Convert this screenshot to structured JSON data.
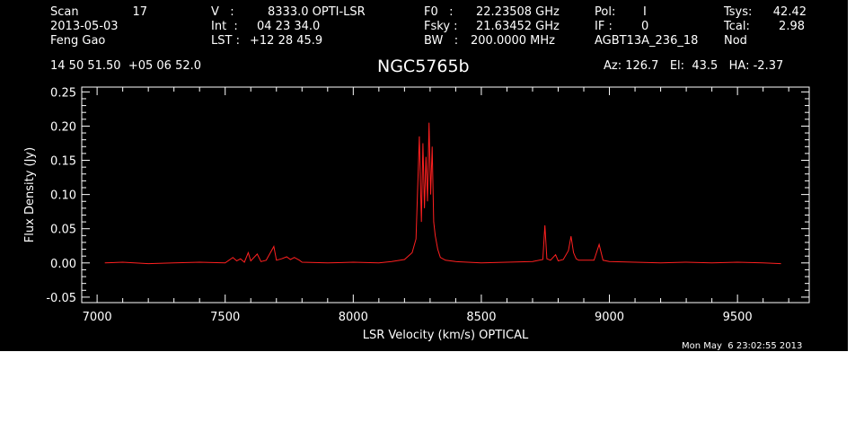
{
  "header": {
    "scan_label": "Scan",
    "scan_value": "17",
    "date": "2013-05-03",
    "observer": "Feng Gao",
    "coords": "14 50 51.50  +05 06 52.0",
    "v_label": "V   :",
    "v_value": "8333.0 OPTI-LSR",
    "int_label": "Int  :",
    "int_value": "04 23 34.0",
    "lst_label": "LST :",
    "lst_value": "+12 28 45.9",
    "f0_label": "F0   :",
    "f0_value": "22.23508 GHz",
    "fsky_label": "Fsky :",
    "fsky_value": "21.63452 GHz",
    "bw_label": "BW   :",
    "bw_value": "200.0000 MHz",
    "pol_label": "Pol:",
    "pol_value": "I",
    "if_label": "IF :",
    "if_value": "0",
    "project": "AGBT13A_236_18",
    "tsys_label": "Tsys:",
    "tsys_value": "42.42",
    "tcal_label": "Tcal:",
    "tcal_value": "2.98",
    "mode": "Nod",
    "az_el_ha": "Az: 126.7   El:  43.5   HA: -2.37"
  },
  "timestamp": "Mon May  6 23:02:55 2013",
  "chart_data": {
    "type": "line",
    "title": "NGC5765b",
    "xlabel": "LSR Velocity (km/s) OPTICAL",
    "ylabel": "Flux Density (Jy)",
    "xlim": [
      6940,
      9780
    ],
    "ylim": [
      -0.058,
      0.257
    ],
    "xticks": [
      7000,
      7500,
      8000,
      8500,
      9000,
      9500
    ],
    "yticks": [
      -0.05,
      0.0,
      0.05,
      0.1,
      0.15,
      0.2,
      0.25
    ],
    "ytick_labels": [
      "-0.05",
      "0.00",
      "0.05",
      "0.10",
      "0.15",
      "0.20",
      "0.25"
    ],
    "grid": false,
    "line_color": "#ff2020",
    "series": [
      {
        "x": [
          7030,
          7100,
          7200,
          7300,
          7400,
          7500,
          7530,
          7545,
          7560,
          7575,
          7590,
          7600,
          7625,
          7640,
          7660,
          7690,
          7700,
          7720,
          7740,
          7755,
          7770,
          7790,
          7800,
          7900,
          8000,
          8100,
          8150,
          8200,
          8230,
          8245,
          8258,
          8266,
          8272,
          8278,
          8284,
          8290,
          8296,
          8302,
          8308,
          8314,
          8320,
          8330,
          8340,
          8360,
          8400,
          8500,
          8600,
          8700,
          8740,
          8748,
          8756,
          8770,
          8790,
          8800,
          8820,
          8840,
          8850,
          8860,
          8870,
          8880,
          8940,
          8960,
          8975,
          9000,
          9100,
          9200,
          9300,
          9400,
          9500,
          9600,
          9670
        ],
        "y": [
          0.0,
          0.001,
          -0.001,
          0.0,
          0.001,
          0.0,
          0.008,
          0.003,
          0.006,
          0.001,
          0.015,
          0.003,
          0.013,
          0.002,
          0.004,
          0.024,
          0.004,
          0.006,
          0.009,
          0.005,
          0.008,
          0.004,
          0.001,
          0.0,
          0.001,
          0.0,
          0.002,
          0.005,
          0.015,
          0.035,
          0.185,
          0.06,
          0.175,
          0.08,
          0.155,
          0.09,
          0.205,
          0.1,
          0.17,
          0.06,
          0.04,
          0.02,
          0.008,
          0.004,
          0.002,
          0.0,
          0.001,
          0.002,
          0.005,
          0.055,
          0.006,
          0.004,
          0.012,
          0.003,
          0.005,
          0.018,
          0.039,
          0.015,
          0.006,
          0.004,
          0.004,
          0.027,
          0.004,
          0.002,
          0.001,
          0.0,
          0.001,
          0.0,
          0.001,
          0.0,
          -0.001
        ]
      }
    ]
  }
}
